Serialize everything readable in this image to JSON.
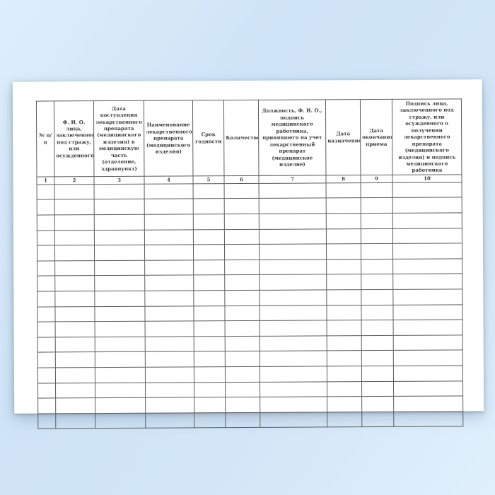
{
  "page": {
    "background_color": "#d2e6f7",
    "paper_color": "#ffffff"
  },
  "document": {
    "kind": "blank-registry-form",
    "table": {
      "columns": [
        {
          "number": "1",
          "label": "№ п/п"
        },
        {
          "number": "2",
          "label": "Ф. И. О. лица, заключенного под стражу, или осужденного"
        },
        {
          "number": "3",
          "label": "Дата поступления лекарственного препарата (медицинского изделия) в медицинскую часть (отделение, здравпункт)"
        },
        {
          "number": "4",
          "label": "Наименование лекарственного препарата (медицинского изделия)"
        },
        {
          "number": "5",
          "label": "Срок годности"
        },
        {
          "number": "6",
          "label": "Количество"
        },
        {
          "number": "7",
          "label": "Должность, Ф. И. О., подпись медицинского работника, принявшего на учет лекарственный препарат (медицинское изделие)"
        },
        {
          "number": "8",
          "label": "Дата назначения"
        },
        {
          "number": "9",
          "label": "Дата окончания приема"
        },
        {
          "number": "10",
          "label": "Подпись лица, заключенного под стражу, или осужденного о получении лекарственного препарата (медицинского изделия) и подпись медицинского работника"
        }
      ],
      "empty_rows": 16
    }
  }
}
